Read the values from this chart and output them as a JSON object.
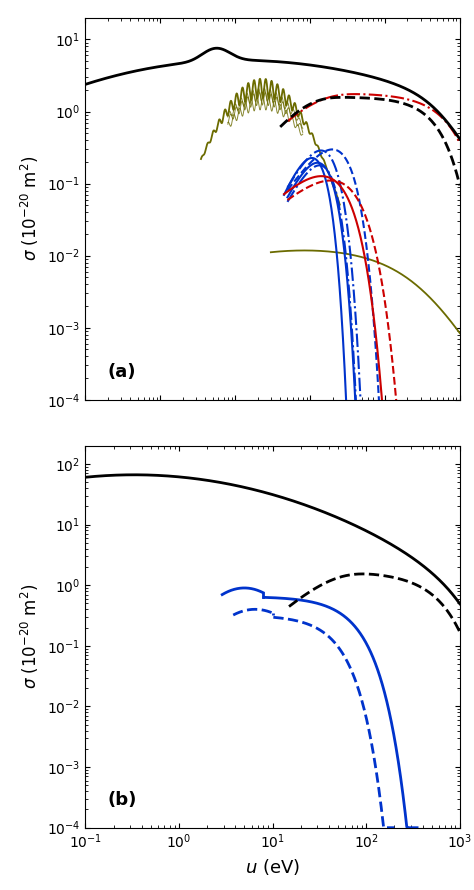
{
  "fig_width": 4.74,
  "fig_height": 8.9,
  "dpi": 100,
  "panel_a": {
    "label": "(a)",
    "xlim": [
      0.01,
      1000
    ],
    "ylim": [
      0.0001,
      20
    ],
    "xticks": [
      0.01,
      0.1,
      1,
      10,
      100,
      1000
    ]
  },
  "panel_b": {
    "label": "(b)",
    "xlim": [
      0.1,
      1000
    ],
    "ylim": [
      0.0001,
      200
    ],
    "xticks": [
      0.1,
      1,
      10,
      100,
      1000
    ]
  },
  "colors": {
    "black": "#000000",
    "red": "#cc0000",
    "blue": "#0033cc",
    "olive": "#6b6b00"
  },
  "lw_main": 2.0,
  "lw_thin": 1.5
}
